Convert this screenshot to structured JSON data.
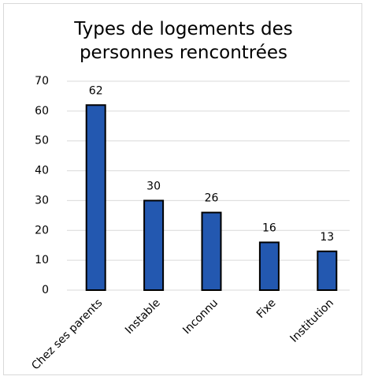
{
  "chart_data": {
    "type": "bar",
    "title": "Types de logements des personnes rencontrées",
    "categories": [
      "Chez ses parents",
      "Instable",
      "Inconnu",
      "Fixe",
      "Institution"
    ],
    "values": [
      62,
      30,
      26,
      16,
      13
    ],
    "color": "#2358b0",
    "ylim": [
      0,
      70
    ],
    "yticks": [
      0,
      10,
      20,
      30,
      40,
      50,
      60,
      70
    ],
    "grid": true
  }
}
